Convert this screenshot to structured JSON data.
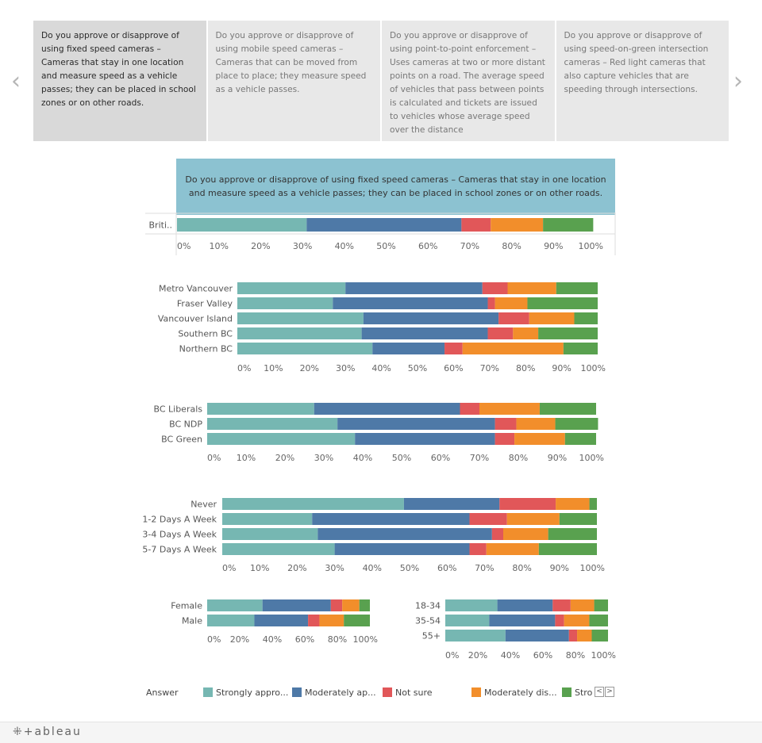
{
  "nav": {
    "prev_icon": "‹",
    "next_icon": "›"
  },
  "tabs": [
    {
      "label": "Do you approve or disapprove of using fixed speed cameras – Cameras that stay in one location and measure speed as a vehicle passes; they can be placed in school zones or on other roads.",
      "active": true
    },
    {
      "label": "Do you approve or disapprove of using mobile speed cameras – Cameras that can be moved from place to place; they measure speed as a vehicle passes.",
      "active": false
    },
    {
      "label": "Do you approve or disapprove of using point-to-point enforcement – Uses cameras at two or more distant points on a road. The average speed of vehicles that pass between points is calculated and tickets are issued to vehicles whose average speed over the distance",
      "active": false
    },
    {
      "label": "Do you approve or disapprove of using speed-on-green intersection cameras – Red light cameras that also capture vehicles that are speeding through intersections.",
      "active": false
    }
  ],
  "colors": {
    "strongly_approve": "#76b7b2",
    "moderately_approve": "#4e79a7",
    "not_sure": "#e15759",
    "moderately_disapprove": "#f28e2b",
    "strongly_disapprove": "#59a14f",
    "question_banner": "#8cc2d1"
  },
  "question_title": "Do you approve or disapprove of using fixed speed cameras – Cameras that stay in one location and measure speed as a vehicle passes; they can be placed in school zones or on other roads.",
  "chart_data": [
    {
      "type": "bar",
      "orientation": "horizontal",
      "stacked": true,
      "name": "overall",
      "categories": [
        "Briti.."
      ],
      "series": [
        {
          "name": "Strongly approve",
          "values": [
            31
          ]
        },
        {
          "name": "Moderately approve",
          "values": [
            37
          ]
        },
        {
          "name": "Not sure",
          "values": [
            7
          ]
        },
        {
          "name": "Moderately disapprove",
          "values": [
            12.5
          ]
        },
        {
          "name": "Strongly disapprove",
          "values": [
            12
          ]
        }
      ],
      "ticks": [
        "0%",
        "10%",
        "20%",
        "30%",
        "40%",
        "50%",
        "60%",
        "70%",
        "80%",
        "90%",
        "100%"
      ],
      "xlim": [
        0,
        100
      ]
    },
    {
      "type": "bar",
      "orientation": "horizontal",
      "stacked": true,
      "name": "region",
      "categories": [
        "Metro Vancouver",
        "Fraser Valley",
        "Vancouver Island",
        "Southern BC",
        "Northern BC"
      ],
      "series": [
        {
          "name": "Strongly approve",
          "values": [
            30,
            26.5,
            35,
            34.5,
            37.5
          ]
        },
        {
          "name": "Moderately approve",
          "values": [
            38,
            43,
            37.5,
            35,
            20
          ]
        },
        {
          "name": "Not sure",
          "values": [
            7,
            2,
            8.5,
            7,
            5
          ]
        },
        {
          "name": "Moderately disapprove",
          "values": [
            13.5,
            9,
            12.5,
            7,
            28
          ]
        },
        {
          "name": "Strongly disapprove",
          "values": [
            11.5,
            19.5,
            6.5,
            16.5,
            9.5
          ]
        }
      ],
      "ticks": [
        "0%",
        "10%",
        "20%",
        "30%",
        "40%",
        "50%",
        "60%",
        "70%",
        "80%",
        "90%",
        "100%"
      ],
      "xlim": [
        0,
        100
      ]
    },
    {
      "type": "bar",
      "orientation": "horizontal",
      "stacked": true,
      "name": "party",
      "categories": [
        "BC Liberals",
        "BC NDP",
        "BC Green"
      ],
      "series": [
        {
          "name": "Strongly approve",
          "values": [
            27.5,
            33.5,
            38
          ]
        },
        {
          "name": "Moderately approve",
          "values": [
            37.5,
            40.5,
            36
          ]
        },
        {
          "name": "Not sure",
          "values": [
            5,
            5.5,
            5
          ]
        },
        {
          "name": "Moderately disapprove",
          "values": [
            15.5,
            10,
            13
          ]
        },
        {
          "name": "Strongly disapprove",
          "values": [
            14.5,
            11,
            8
          ]
        }
      ],
      "ticks": [
        "0%",
        "10%",
        "20%",
        "30%",
        "40%",
        "50%",
        "60%",
        "70%",
        "80%",
        "90%",
        "100%"
      ],
      "xlim": [
        0,
        100
      ]
    },
    {
      "type": "bar",
      "orientation": "horizontal",
      "stacked": true,
      "name": "driving_frequency",
      "categories": [
        "Never",
        "1-2 Days A Week",
        "3-4 Days A Week",
        "5-7 Days A Week"
      ],
      "series": [
        {
          "name": "Strongly approve",
          "values": [
            48.5,
            24,
            25.5,
            30
          ]
        },
        {
          "name": "Moderately approve",
          "values": [
            25.5,
            42,
            46.5,
            36
          ]
        },
        {
          "name": "Not sure",
          "values": [
            15,
            10,
            3,
            4.5
          ]
        },
        {
          "name": "Moderately disapprove",
          "values": [
            9,
            14,
            12,
            14
          ]
        },
        {
          "name": "Strongly disapprove",
          "values": [
            2,
            10,
            13,
            15.5
          ]
        }
      ],
      "ticks": [
        "0%",
        "10%",
        "20%",
        "30%",
        "40%",
        "50%",
        "60%",
        "70%",
        "80%",
        "90%",
        "100%"
      ],
      "xlim": [
        0,
        100
      ]
    },
    {
      "type": "bar",
      "orientation": "horizontal",
      "stacked": true,
      "name": "gender",
      "categories": [
        "Female",
        "Male"
      ],
      "series": [
        {
          "name": "Strongly approve",
          "values": [
            34,
            29
          ]
        },
        {
          "name": "Moderately approve",
          "values": [
            42,
            33
          ]
        },
        {
          "name": "Not sure",
          "values": [
            7,
            7
          ]
        },
        {
          "name": "Moderately disapprove",
          "values": [
            10.5,
            15
          ]
        },
        {
          "name": "Strongly disapprove",
          "values": [
            6.5,
            16
          ]
        }
      ],
      "ticks": [
        "0%",
        "20%",
        "40%",
        "60%",
        "80%",
        "100%"
      ],
      "xlim": [
        0,
        100
      ]
    },
    {
      "type": "bar",
      "orientation": "horizontal",
      "stacked": true,
      "name": "age",
      "categories": [
        "18-34",
        "35-54",
        "55+"
      ],
      "series": [
        {
          "name": "Strongly approve",
          "values": [
            32,
            27,
            37
          ]
        },
        {
          "name": "Moderately approve",
          "values": [
            34,
            40.5,
            39
          ]
        },
        {
          "name": "Not sure",
          "values": [
            11,
            5.5,
            5
          ]
        },
        {
          "name": "Moderately disapprove",
          "values": [
            14.5,
            15.5,
            9
          ]
        },
        {
          "name": "Strongly disapprove",
          "values": [
            8.5,
            11.5,
            10
          ]
        }
      ],
      "ticks": [
        "0%",
        "20%",
        "40%",
        "60%",
        "80%",
        "100%"
      ],
      "xlim": [
        0,
        100
      ]
    }
  ],
  "legend": {
    "title": "Answer",
    "items": [
      {
        "label": "Strongly appro...",
        "color": "#76b7b2"
      },
      {
        "label": "Moderately ap...",
        "color": "#4e79a7"
      },
      {
        "label": "Not sure",
        "color": "#e15759"
      },
      {
        "label": "Moderately dis...",
        "color": "#f28e2b"
      },
      {
        "label": "Strongly disapprove",
        "color": "#59a14f"
      }
    ],
    "pager_prev": "<",
    "pager_next": ">"
  },
  "footer": {
    "brand": "⁜+ableau"
  }
}
